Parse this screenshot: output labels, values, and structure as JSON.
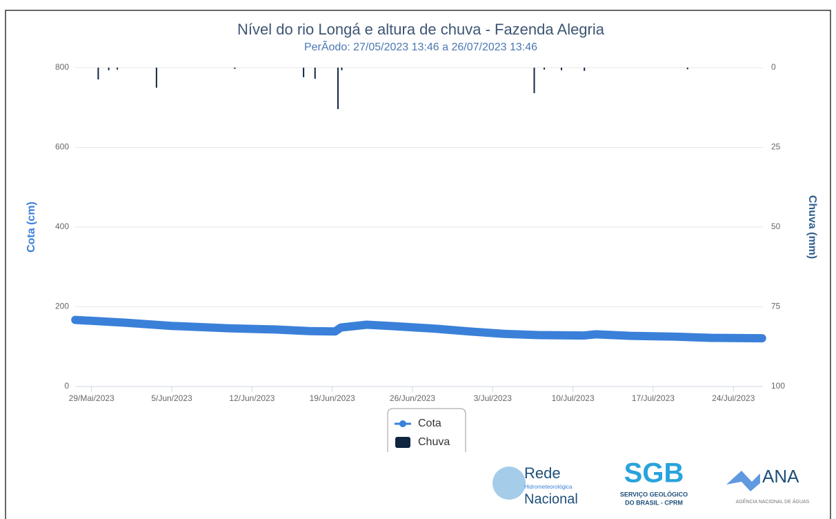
{
  "chart_data": {
    "type": "line",
    "title": "Nível do rio Longá e altura de chuva - Fazenda Alegria",
    "subtitle": "PerÃodo: 27/05/2023 13:46 a 26/07/2023 13:46",
    "y_label": "Cota (cm)",
    "y2_label": "Chuva (mm)",
    "xlim": [
      "2023-05-27T13:46",
      "2023-07-26T13:46"
    ],
    "xticks": [
      {
        "value": "2023-05-29T00:00",
        "label": "29/Mai/2023"
      },
      {
        "value": "2023-06-05T00:00",
        "label": "5/Jun/2023"
      },
      {
        "value": "2023-06-12T00:00",
        "label": "12/Jun/2023"
      },
      {
        "value": "2023-06-19T00:00",
        "label": "19/Jun/2023"
      },
      {
        "value": "2023-06-26T00:00",
        "label": "26/Jun/2023"
      },
      {
        "value": "2023-07-03T00:00",
        "label": "3/Jul/2023"
      },
      {
        "value": "2023-07-10T00:00",
        "label": "10/Jul/2023"
      },
      {
        "value": "2023-07-17T00:00",
        "label": "17/Jul/2023"
      },
      {
        "value": "2023-07-24T00:00",
        "label": "24/Jul/2023"
      }
    ],
    "ylim": [
      0,
      800
    ],
    "yticks": [
      0,
      200,
      400,
      600,
      800
    ],
    "y2lim": [
      0,
      100
    ],
    "y2ticks": [
      0,
      25,
      50,
      75,
      100
    ],
    "y2_reversed": true,
    "grid": true,
    "legend": "bottom",
    "series": [
      {
        "name": "Cota",
        "type": "line",
        "color": "#3a80d9",
        "x": [
          "2023-05-27T14:00",
          "2023-06-01T00:00",
          "2023-06-05T00:00",
          "2023-06-10T00:00",
          "2023-06-14T00:00",
          "2023-06-17T00:00",
          "2023-06-19T06:00",
          "2023-06-19T18:00",
          "2023-06-22T00:00",
          "2023-06-24T00:00",
          "2023-06-28T00:00",
          "2023-07-01T00:00",
          "2023-07-04T00:00",
          "2023-07-07T00:00",
          "2023-07-11T00:00",
          "2023-07-12T00:00",
          "2023-07-15T00:00",
          "2023-07-19T00:00",
          "2023-07-22T00:00",
          "2023-07-26T12:00"
        ],
        "values": [
          167,
          160,
          152,
          146,
          143,
          139,
          138,
          148,
          155,
          152,
          145,
          138,
          132,
          129,
          128,
          131,
          127,
          125,
          122,
          121
        ]
      },
      {
        "name": "Chuva",
        "type": "bar",
        "axis": "y2",
        "color": "#0f2540",
        "x": [
          "2023-05-29T14:00",
          "2023-05-30T12:00",
          "2023-05-31T06:00",
          "2023-06-03T16:00",
          "2023-06-10T12:00",
          "2023-06-16T12:00",
          "2023-06-17T12:00",
          "2023-06-19T12:00",
          "2023-06-19T20:00",
          "2023-07-06T15:00",
          "2023-07-07T12:00",
          "2023-07-09T00:00",
          "2023-07-11T00:00",
          "2023-07-20T00:00"
        ],
        "values": [
          3.7,
          0.8,
          0.6,
          6.3,
          0.4,
          3,
          3.5,
          13,
          0.8,
          8,
          0.6,
          0.8,
          1,
          0.5
        ]
      }
    ],
    "logos": [
      "Rede",
      "Hidrometeorológica",
      "Nacional",
      "SGB",
      "SERVIÇO GEOLÓGICO",
      "DO BRASIL - CPRM",
      "ANA",
      "AGÊNCIA NACIONAL DE ÁGUAS"
    ]
  }
}
